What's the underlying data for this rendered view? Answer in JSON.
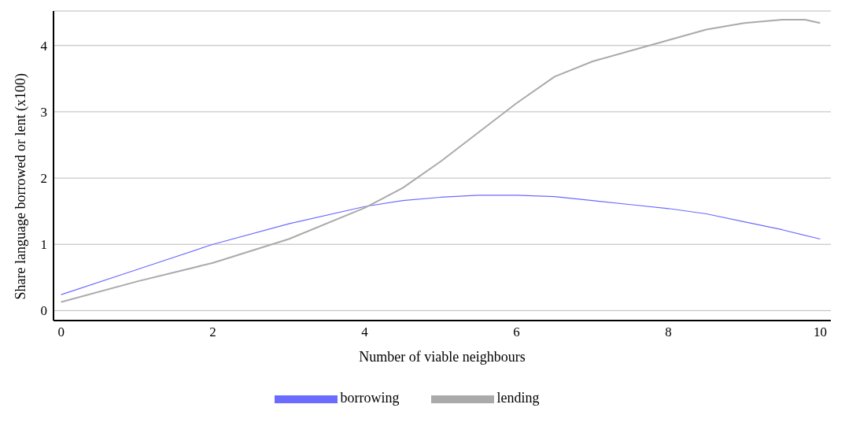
{
  "chart_data": {
    "type": "line",
    "xlabel": "Number of viable neighbours",
    "ylabel": "Share language borrowed or lent (x100)",
    "xlim": [
      -0.1,
      10.14
    ],
    "xticks": [
      0,
      2,
      4,
      6,
      8,
      10
    ],
    "ylim": [
      -0.15,
      4.52
    ],
    "yticks": [
      0,
      1,
      2,
      3,
      4
    ],
    "grid": "y",
    "legend": "bottom",
    "marker": "none",
    "line_style": "solid",
    "series": [
      {
        "name": "borrowing",
        "color": "#6b6bff",
        "x": [
          0,
          1,
          2,
          3,
          4,
          4.5,
          5,
          5.5,
          6,
          6.5,
          7,
          7.5,
          8,
          8.5,
          9,
          9.5,
          10
        ],
        "values": [
          0.24,
          0.62,
          1.0,
          1.31,
          1.57,
          1.66,
          1.71,
          1.74,
          1.74,
          1.72,
          1.66,
          1.6,
          1.54,
          1.46,
          1.34,
          1.22,
          1.08
        ]
      },
      {
        "name": "lending",
        "color": "#aaaaaa",
        "x": [
          0,
          1,
          2,
          3,
          4,
          4.5,
          5,
          5.5,
          6,
          6.5,
          7,
          7.5,
          8,
          8.5,
          9,
          9.5,
          9.8,
          10
        ],
        "values": [
          0.13,
          0.44,
          0.72,
          1.08,
          1.55,
          1.85,
          2.25,
          2.69,
          3.13,
          3.53,
          3.76,
          3.92,
          4.08,
          4.24,
          4.34,
          4.39,
          4.39,
          4.34
        ]
      }
    ]
  }
}
